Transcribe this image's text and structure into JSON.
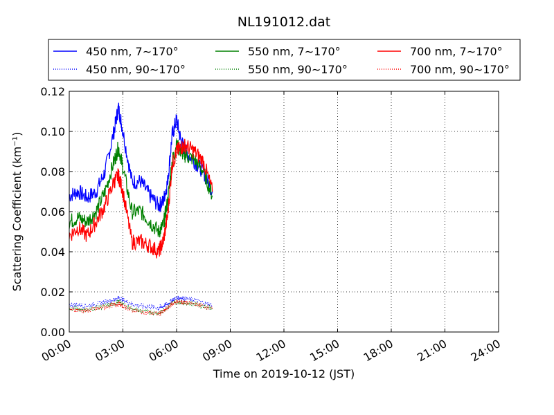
{
  "chart_data": {
    "type": "line",
    "title": "NL191012.dat",
    "xlabel": "Time on 2019-10-12 (JST)",
    "ylabel": "Scattering Coefficient (km⁻¹)",
    "xlim": [
      "00:00",
      "24:00"
    ],
    "ylim": [
      0,
      0.12
    ],
    "grid": true,
    "legend_placement": "top (above plot, 3 columns)",
    "x_ticks": [
      "00:00",
      "03:00",
      "06:00",
      "09:00",
      "12:00",
      "15:00",
      "18:00",
      "21:00",
      "24:00"
    ],
    "y_ticks": [
      "0.00",
      "0.02",
      "0.04",
      "0.06",
      "0.08",
      "0.10",
      "0.12"
    ],
    "x_hours": [
      0,
      0.5,
      1,
      1.5,
      2,
      2.5,
      2.75,
      3,
      3.5,
      4,
      4.5,
      5,
      5.25,
      5.5,
      5.75,
      6,
      6.25,
      6.5,
      7,
      7.5,
      8
    ],
    "series": [
      {
        "name": "450 nm, 7∼170°",
        "color": "#0000ff",
        "style": "solid",
        "values": [
          0.068,
          0.07,
          0.067,
          0.07,
          0.08,
          0.1,
          0.112,
          0.1,
          0.075,
          0.075,
          0.068,
          0.063,
          0.065,
          0.075,
          0.098,
          0.106,
          0.095,
          0.09,
          0.085,
          0.08,
          0.07
        ]
      },
      {
        "name": "550 nm, 7∼170°",
        "color": "#008000",
        "style": "solid",
        "values": [
          0.055,
          0.057,
          0.055,
          0.06,
          0.07,
          0.085,
          0.092,
          0.082,
          0.06,
          0.06,
          0.055,
          0.05,
          0.053,
          0.065,
          0.085,
          0.093,
          0.09,
          0.088,
          0.086,
          0.08,
          0.068
        ]
      },
      {
        "name": "700 nm, 7∼170°",
        "color": "#ff0000",
        "style": "solid",
        "values": [
          0.048,
          0.052,
          0.048,
          0.055,
          0.063,
          0.075,
          0.078,
          0.07,
          0.045,
          0.045,
          0.043,
          0.04,
          0.045,
          0.058,
          0.083,
          0.09,
          0.092,
          0.093,
          0.09,
          0.085,
          0.07
        ]
      },
      {
        "name": "450 nm, 90∼170°",
        "color": "#0000ff",
        "style": "dotted",
        "values": [
          0.0135,
          0.0135,
          0.013,
          0.014,
          0.015,
          0.016,
          0.017,
          0.016,
          0.014,
          0.013,
          0.0125,
          0.012,
          0.013,
          0.014,
          0.016,
          0.017,
          0.017,
          0.0165,
          0.016,
          0.0145,
          0.0135
        ]
      },
      {
        "name": "550 nm, 90∼170°",
        "color": "#008000",
        "style": "dotted",
        "values": [
          0.0115,
          0.0115,
          0.011,
          0.012,
          0.013,
          0.014,
          0.015,
          0.014,
          0.0115,
          0.0105,
          0.01,
          0.0095,
          0.0105,
          0.0125,
          0.0145,
          0.015,
          0.015,
          0.0145,
          0.014,
          0.013,
          0.012
        ]
      },
      {
        "name": "700 nm, 90∼170°",
        "color": "#ff0000",
        "style": "dotted",
        "values": [
          0.011,
          0.011,
          0.0105,
          0.0115,
          0.0125,
          0.0135,
          0.014,
          0.013,
          0.011,
          0.01,
          0.0095,
          0.009,
          0.01,
          0.012,
          0.014,
          0.015,
          0.015,
          0.0145,
          0.014,
          0.013,
          0.0115
        ]
      }
    ]
  }
}
